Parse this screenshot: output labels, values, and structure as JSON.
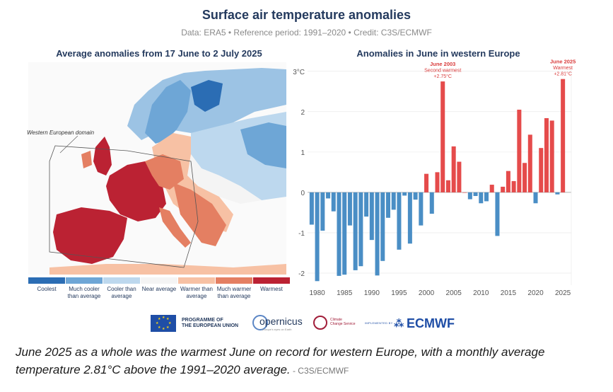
{
  "header": {
    "title": "Surface air temperature anomalies",
    "subtitle": "Data: ERA5 • Reference period: 1991–2020 • Credit: C3S/ECMWF"
  },
  "map_panel": {
    "title": "Average anomalies from 17 June to 2 July 2025",
    "domain_label": "Western European domain",
    "legend": [
      {
        "label": "Coolest",
        "color": "#2b6db4"
      },
      {
        "label": "Much cooler than average",
        "color": "#6ea6d6"
      },
      {
        "label": "Cooler than average",
        "color": "#bdd8ee"
      },
      {
        "label": "Near average",
        "color": "#f4f4f4"
      },
      {
        "label": "Warmer than average",
        "color": "#f7c1a4"
      },
      {
        "label": "Much warmer than average",
        "color": "#e47f62"
      },
      {
        "label": "Warmest",
        "color": "#bb2233"
      }
    ]
  },
  "chart_data": {
    "type": "bar",
    "title": "Anomalies in June in western Europe",
    "xlabel": "",
    "ylabel": "°C",
    "ylim": [
      -2.3,
      3.05
    ],
    "yticks": [
      "-2",
      "-1",
      "0",
      "1",
      "2",
      "3°C"
    ],
    "ytick_values": [
      -2,
      -1,
      0,
      1,
      2,
      3
    ],
    "xticks": [
      "1980",
      "1985",
      "1990",
      "1995",
      "2000",
      "2005",
      "2010",
      "2015",
      "2020",
      "2025"
    ],
    "xtick_values": [
      1980,
      1985,
      1990,
      1995,
      2000,
      2005,
      2010,
      2015,
      2020,
      2025
    ],
    "x": [
      1979,
      1980,
      1981,
      1982,
      1983,
      1984,
      1985,
      1986,
      1987,
      1988,
      1989,
      1990,
      1991,
      1992,
      1993,
      1994,
      1995,
      1996,
      1997,
      1998,
      1999,
      2000,
      2001,
      2002,
      2003,
      2004,
      2005,
      2006,
      2007,
      2008,
      2009,
      2010,
      2011,
      2012,
      2013,
      2014,
      2015,
      2016,
      2017,
      2018,
      2019,
      2020,
      2021,
      2022,
      2023,
      2024,
      2025
    ],
    "values": [
      -0.8,
      -2.2,
      -0.95,
      -0.15,
      -0.47,
      -2.07,
      -2.04,
      -0.82,
      -1.93,
      -1.83,
      -0.6,
      -1.18,
      -2.06,
      -1.7,
      -0.63,
      -0.43,
      -1.42,
      -0.08,
      -1.27,
      -0.18,
      -0.82,
      0.46,
      -0.53,
      0.5,
      2.75,
      0.3,
      1.14,
      0.76,
      0.0,
      -0.17,
      -0.09,
      -0.27,
      -0.22,
      0.19,
      -1.08,
      0.14,
      0.53,
      0.28,
      2.05,
      0.73,
      1.43,
      -0.27,
      1.1,
      1.84,
      1.78,
      -0.05,
      2.81
    ],
    "colors": {
      "positive": "#e54b4b",
      "negative": "#4a8ec5"
    },
    "annotations": [
      {
        "year": 2003,
        "lines": [
          "June 2003",
          "Second warmest",
          "+2.75°C"
        ]
      },
      {
        "year": 2025,
        "lines": [
          "June 2025",
          "Warmest",
          "+2.81°C"
        ]
      }
    ]
  },
  "logos": {
    "eu_text_1": "PROGRAMME OF",
    "eu_text_2": "THE EUROPEAN UNION",
    "copernicus": "opernicus",
    "copernicus_sub": "Europe's eyes on Earth",
    "c3s_1": "Climate",
    "c3s_2": "Change Service",
    "implemented": "IMPLEMENTED BY",
    "ecmwf": "ECMWF"
  },
  "caption": {
    "text": "June 2025 as a whole was the warmest June on record for western Europe, with a monthly average temperature 2.81°C above the 1991–2020 average.",
    "credit": " - C3S/ECMWF"
  }
}
